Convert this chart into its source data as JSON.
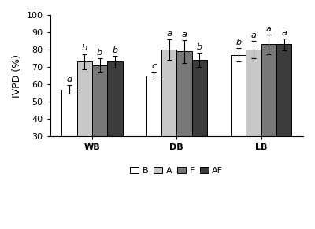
{
  "groups": [
    "WB",
    "DB",
    "LB"
  ],
  "series": [
    "B",
    "A",
    "F",
    "AF"
  ],
  "values": [
    [
      57.0,
      73.0,
      71.0,
      73.0
    ],
    [
      65.0,
      80.0,
      79.0,
      74.0
    ],
    [
      77.0,
      80.0,
      83.0,
      83.0
    ]
  ],
  "errors": [
    [
      2.5,
      4.5,
      4.0,
      3.5
    ],
    [
      2.0,
      6.0,
      6.5,
      4.0
    ],
    [
      4.0,
      5.0,
      5.5,
      3.5
    ]
  ],
  "letters": [
    [
      "d",
      "b",
      "b",
      "b"
    ],
    [
      "c",
      "a",
      "a",
      "b"
    ],
    [
      "b",
      "a",
      "a",
      "a"
    ]
  ],
  "colors": [
    "#ffffff",
    "#c8c8c8",
    "#787878",
    "#3c3c3c"
  ],
  "edgecolor": "#000000",
  "ylabel": "IVPD (%)",
  "ylim": [
    30,
    100
  ],
  "yticks": [
    30,
    40,
    50,
    60,
    70,
    80,
    90,
    100
  ],
  "bar_width": 0.18,
  "group_centers": [
    0.0,
    1.0,
    2.0
  ],
  "legend_labels": [
    "B",
    "A",
    "F",
    "AF"
  ],
  "background_color": "#ffffff",
  "letter_fontsize": 8,
  "axis_fontsize": 9,
  "legend_fontsize": 8,
  "tick_fontsize": 8
}
